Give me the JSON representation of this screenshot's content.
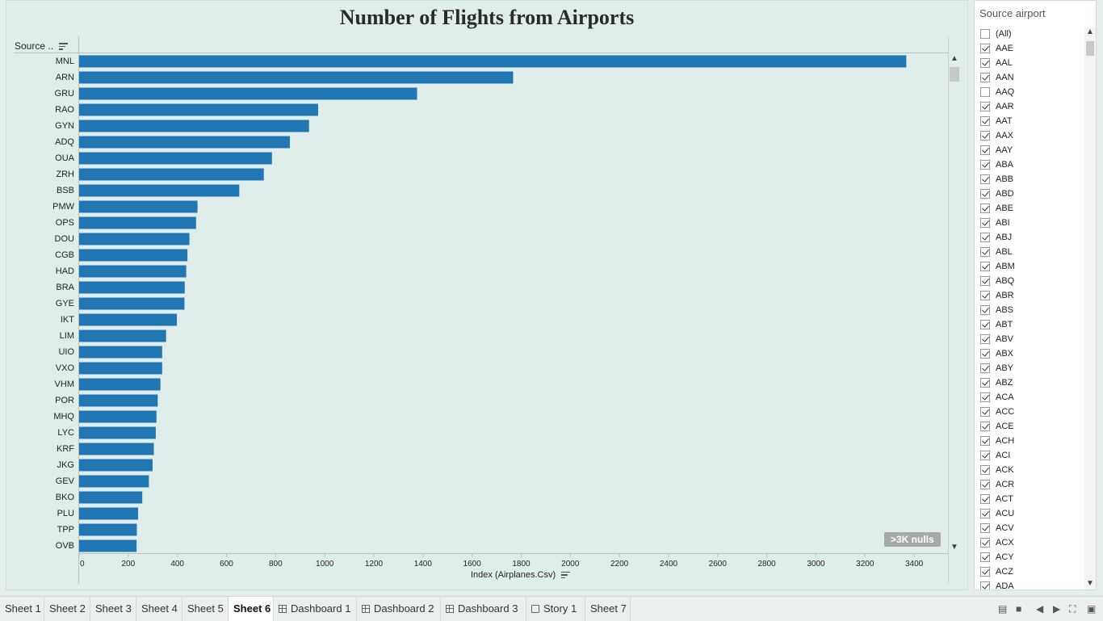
{
  "chart_data": {
    "type": "bar",
    "orientation": "horizontal",
    "title": "Number of Flights from Airports",
    "row_header": "Source ..",
    "xlabel": "Index (Airplanes.Csv)",
    "xlim": [
      0,
      3500
    ],
    "x_ticks": [
      0,
      200,
      400,
      600,
      800,
      1000,
      1200,
      1400,
      1600,
      1800,
      2000,
      2200,
      2400,
      2600,
      2800,
      3000,
      3200,
      3400
    ],
    "categories": [
      "MNL",
      "ARN",
      "GRU",
      "RAO",
      "GYN",
      "ADQ",
      "OUA",
      "ZRH",
      "BSB",
      "PMW",
      "OPS",
      "DOU",
      "CGB",
      "HAD",
      "BRA",
      "GYE",
      "IKT",
      "LIM",
      "UIO",
      "VXO",
      "VHM",
      "POR",
      "MHQ",
      "LYC",
      "KRF",
      "JKG",
      "GEV",
      "BKO",
      "PLU",
      "TPP",
      "OVB"
    ],
    "values": [
      3368,
      1767,
      1376,
      973,
      936,
      858,
      785,
      752,
      652,
      482,
      476,
      449,
      441,
      436,
      430,
      429,
      398,
      354,
      338,
      338,
      331,
      320,
      315,
      312,
      304,
      299,
      284,
      257,
      240,
      235,
      234
    ],
    "bar_color": "#2177b4",
    "nulls_label": ">3K nulls",
    "grid": false
  },
  "filter": {
    "title": "Source airport",
    "items": [
      {
        "label": "(All)",
        "checked": false
      },
      {
        "label": "AAE",
        "checked": true
      },
      {
        "label": "AAL",
        "checked": true
      },
      {
        "label": "AAN",
        "checked": true
      },
      {
        "label": "AAQ",
        "checked": false
      },
      {
        "label": "AAR",
        "checked": true
      },
      {
        "label": "AAT",
        "checked": true
      },
      {
        "label": "AAX",
        "checked": true
      },
      {
        "label": "AAY",
        "checked": true
      },
      {
        "label": "ABA",
        "checked": true
      },
      {
        "label": "ABB",
        "checked": true
      },
      {
        "label": "ABD",
        "checked": true
      },
      {
        "label": "ABE",
        "checked": true
      },
      {
        "label": "ABI",
        "checked": true
      },
      {
        "label": "ABJ",
        "checked": true
      },
      {
        "label": "ABL",
        "checked": true
      },
      {
        "label": "ABM",
        "checked": true
      },
      {
        "label": "ABQ",
        "checked": true
      },
      {
        "label": "ABR",
        "checked": true
      },
      {
        "label": "ABS",
        "checked": true
      },
      {
        "label": "ABT",
        "checked": true
      },
      {
        "label": "ABV",
        "checked": true
      },
      {
        "label": "ABX",
        "checked": true
      },
      {
        "label": "ABY",
        "checked": true
      },
      {
        "label": "ABZ",
        "checked": true
      },
      {
        "label": "ACA",
        "checked": true
      },
      {
        "label": "ACC",
        "checked": true
      },
      {
        "label": "ACE",
        "checked": true
      },
      {
        "label": "ACH",
        "checked": true
      },
      {
        "label": "ACI",
        "checked": true
      },
      {
        "label": "ACK",
        "checked": true
      },
      {
        "label": "ACR",
        "checked": true
      },
      {
        "label": "ACT",
        "checked": true
      },
      {
        "label": "ACU",
        "checked": true
      },
      {
        "label": "ACV",
        "checked": true
      },
      {
        "label": "ACX",
        "checked": true
      },
      {
        "label": "ACY",
        "checked": true
      },
      {
        "label": "ACZ",
        "checked": true
      },
      {
        "label": "ADA",
        "checked": true
      }
    ]
  },
  "tabs": [
    {
      "label": "Sheet 1",
      "icon": "",
      "active": false
    },
    {
      "label": "Sheet 2",
      "icon": "",
      "active": false
    },
    {
      "label": "Sheet 3",
      "icon": "",
      "active": false
    },
    {
      "label": "Sheet 4",
      "icon": "",
      "active": false
    },
    {
      "label": "Sheet 5",
      "icon": "",
      "active": false
    },
    {
      "label": "Sheet 6",
      "icon": "",
      "active": true
    },
    {
      "label": "Dashboard 1",
      "icon": "dashboard-icon",
      "active": false
    },
    {
      "label": "Dashboard 2",
      "icon": "dashboard-icon",
      "active": false
    },
    {
      "label": "Dashboard 3",
      "icon": "dashboard-icon",
      "active": false
    },
    {
      "label": "Story 1",
      "icon": "story-icon",
      "active": false
    },
    {
      "label": "Sheet 7",
      "icon": "",
      "active": false
    }
  ]
}
